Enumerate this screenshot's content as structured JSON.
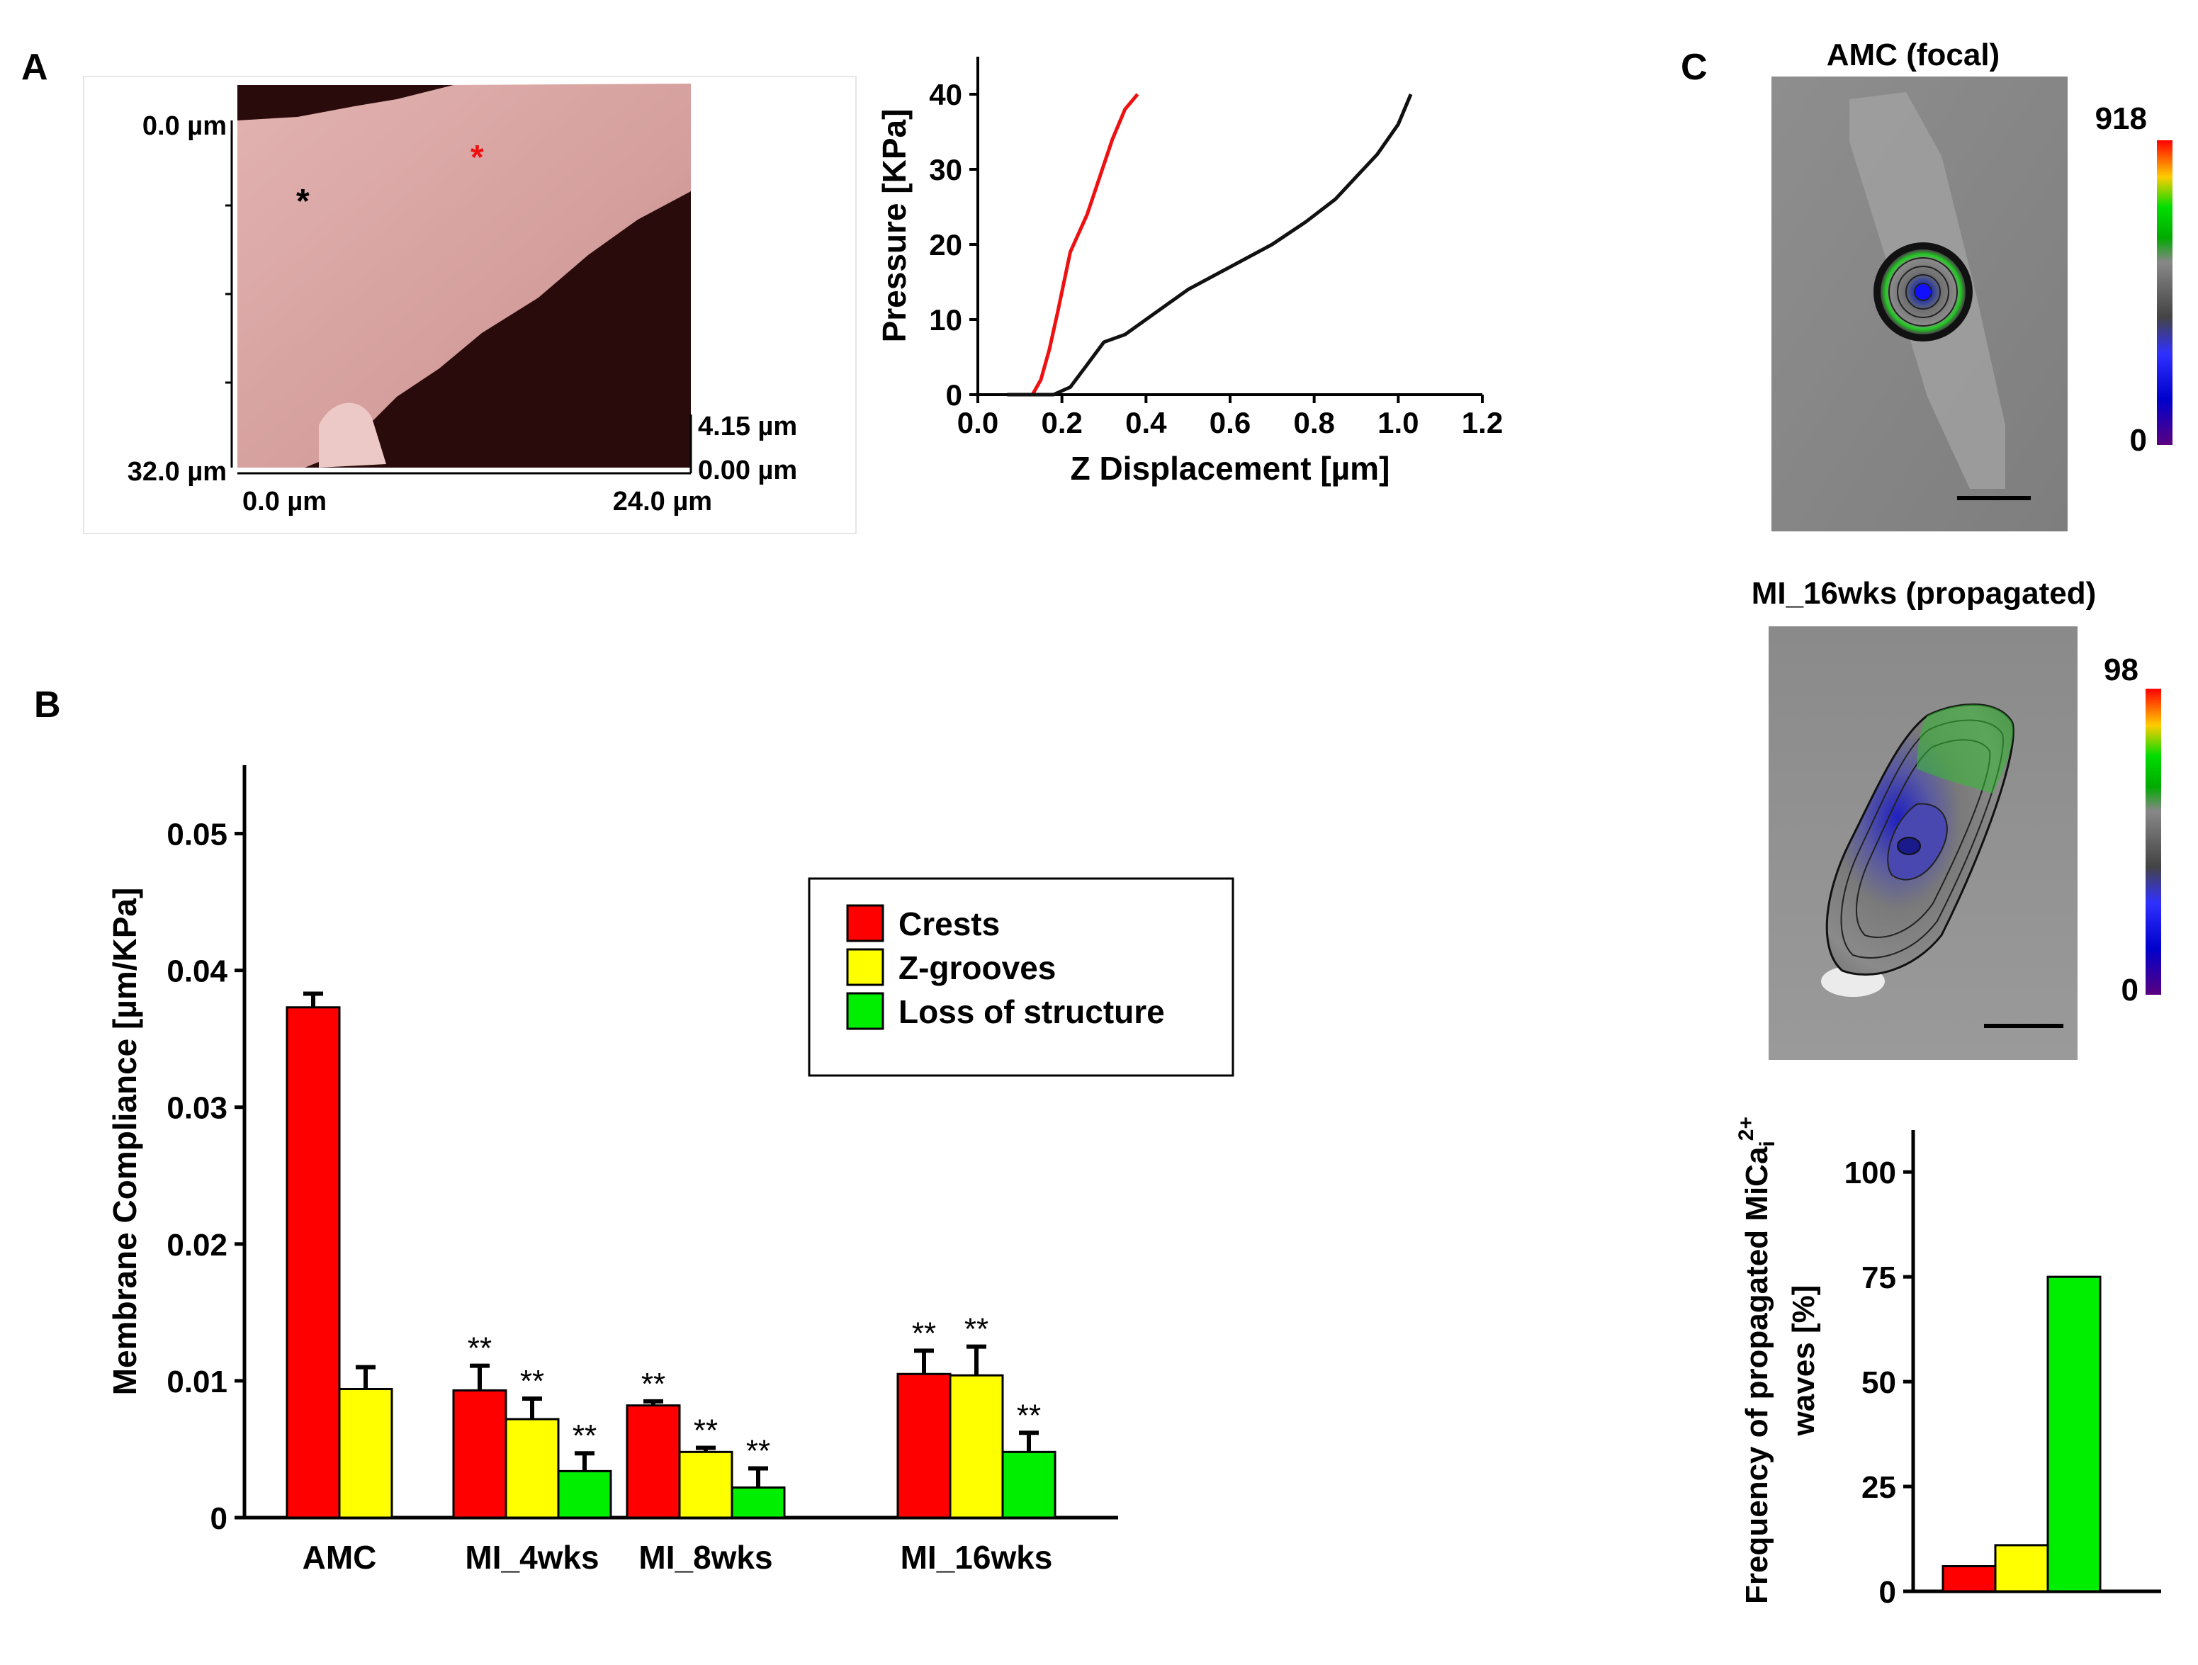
{
  "panel_labels": {
    "a": "A",
    "b": "B",
    "c": "C"
  },
  "afm_image": {
    "y_top_label": "0.0 µm",
    "y_bottom_label": "32.0 µm",
    "x_left_label": "0.0 µm",
    "x_right_label": "24.0 µm",
    "z_top_label": "4.15 µm",
    "z_bottom_label": "0.00 µm",
    "marker_black": "*",
    "marker_red": "*",
    "colors": {
      "cell": "#d9a6a4",
      "background": "#2a0b0b"
    }
  },
  "cell_images": {
    "top_title": "AMC (focal)",
    "top_scale_max": "918",
    "top_scale_min": "0",
    "bottom_title": "MI_16wks (propagated)",
    "bottom_scale_max": "98",
    "bottom_scale_min": "0",
    "colormap": [
      "#ff0000",
      "#00dd00",
      "#888888",
      "#0000ff",
      "#5a0080"
    ]
  },
  "chart_data": [
    {
      "id": "pressure_curve",
      "type": "line",
      "title": "",
      "xlabel": "Z Displacement [µm]",
      "ylabel": "Pressure [KPa]",
      "xlim": [
        0.0,
        1.2
      ],
      "ylim": [
        0,
        45
      ],
      "xticks": [
        "0.0",
        "0.2",
        "0.4",
        "0.6",
        "0.8",
        "1.0",
        "1.2"
      ],
      "yticks": [
        "0",
        "10",
        "20",
        "30",
        "40"
      ],
      "series": [
        {
          "name": "red",
          "color": "#ee1111",
          "x": [
            0.07,
            0.1,
            0.13,
            0.15,
            0.17,
            0.19,
            0.22,
            0.26,
            0.29,
            0.32,
            0.35,
            0.38
          ],
          "y": [
            0,
            0,
            0,
            2,
            6,
            11,
            19,
            24,
            29,
            34,
            38,
            40
          ]
        },
        {
          "name": "black",
          "color": "#111111",
          "x": [
            0.07,
            0.12,
            0.18,
            0.22,
            0.26,
            0.3,
            0.35,
            0.4,
            0.5,
            0.6,
            0.7,
            0.78,
            0.85,
            0.9,
            0.95,
            1.0,
            1.03
          ],
          "y": [
            0,
            0,
            0,
            1,
            4,
            7,
            8,
            10,
            14,
            17,
            20,
            23,
            26,
            29,
            32,
            36,
            40
          ]
        }
      ]
    },
    {
      "id": "compliance_bars",
      "type": "bar",
      "title": "",
      "xlabel": "",
      "ylabel": "Membrane Compliance  [µm/KPa]",
      "ylim": [
        0,
        0.055
      ],
      "yticks": [
        "0",
        "0.01",
        "0.02",
        "0.03",
        "0.04",
        "0.05"
      ],
      "categories": [
        "AMC",
        "MI_4wks",
        "MI_8wks",
        "MI_16wks"
      ],
      "series": [
        {
          "name": "Crests",
          "color": "#ff0000",
          "values": [
            0.0373,
            0.0093,
            0.0082,
            0.0105
          ],
          "errors": [
            0.001,
            0.0018,
            0.0003,
            0.0017
          ],
          "sig": [
            "",
            "**",
            "**",
            "**"
          ]
        },
        {
          "name": "Z-grooves",
          "color": "#ffff00",
          "values": [
            0.0094,
            0.0072,
            0.0048,
            0.0104
          ],
          "errors": [
            0.0016,
            0.0015,
            0.0003,
            0.0021
          ],
          "sig": [
            "",
            "**",
            "**",
            "**"
          ]
        },
        {
          "name": "Loss of structure",
          "color": "#00ee00",
          "values": [
            null,
            0.0034,
            0.0022,
            0.0048
          ],
          "errors": [
            null,
            0.0013,
            0.0014,
            0.0014
          ],
          "sig": [
            "",
            "**",
            "**",
            "**"
          ]
        }
      ],
      "legend": {
        "position": "upper-right",
        "entries": [
          "Crests",
          "Z-grooves",
          "Loss of structure"
        ]
      }
    },
    {
      "id": "propagation_frequency",
      "type": "bar",
      "title": "",
      "xlabel": "",
      "ylabel_line1": "Frequency of propagated MiCa",
      "ylabel_sub": "i",
      "ylabel_sup": "2+",
      "ylabel_line2": "waves [%]",
      "ylim": [
        0,
        110
      ],
      "yticks": [
        "0",
        "25",
        "50",
        "75",
        "100"
      ],
      "categories": [
        "Crests",
        "Z-grooves",
        "Loss of structure"
      ],
      "values": [
        6,
        11,
        75
      ],
      "colors": [
        "#ff0000",
        "#ffff00",
        "#00ee00"
      ]
    }
  ]
}
